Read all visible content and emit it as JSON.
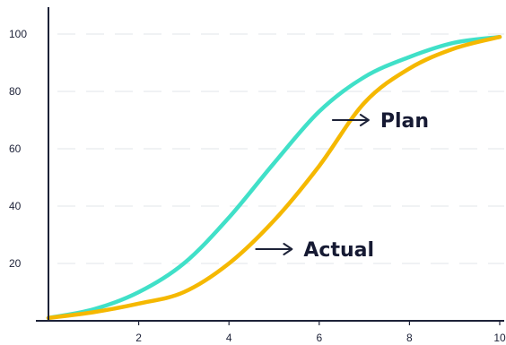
{
  "chart_data": {
    "type": "line",
    "xlim": [
      0,
      10
    ],
    "ylim": [
      0,
      100
    ],
    "xticks": [
      2,
      4,
      6,
      8,
      10
    ],
    "yticks": [
      20,
      40,
      60,
      80,
      100
    ],
    "xtick_labels": [
      "2",
      "4",
      "6",
      "8",
      "10"
    ],
    "ytick_labels": [
      "20",
      "40",
      "60",
      "80",
      "100"
    ],
    "grid": "horizontal dashed",
    "series": [
      {
        "name": "Plan",
        "color": "#40e0c8",
        "x": [
          0,
          1,
          2,
          3,
          4,
          5,
          6,
          7,
          8,
          9,
          10
        ],
        "y": [
          1,
          4,
          10,
          20,
          36,
          55,
          73,
          85,
          92,
          97,
          99
        ]
      },
      {
        "name": "Actual",
        "color": "#f5b800",
        "x": [
          0,
          1,
          2,
          3,
          4,
          5,
          6,
          7,
          8,
          9,
          10
        ],
        "y": [
          1,
          3,
          6,
          10,
          20,
          35,
          54,
          76,
          88,
          95,
          99
        ]
      }
    ],
    "annotations": [
      {
        "text": "Plan",
        "series": "Plan",
        "x": 6.3,
        "y": 70
      },
      {
        "text": "Actual",
        "series": "Actual",
        "x": 4.6,
        "y": 25
      }
    ]
  }
}
